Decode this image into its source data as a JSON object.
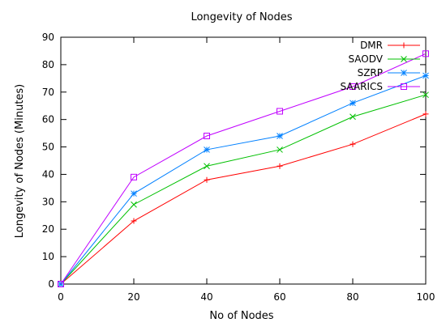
{
  "chart_data": {
    "type": "line",
    "title": "Longevity of Nodes",
    "xlabel": "No of Nodes",
    "ylabel": "Longevity of Nodes (Minutes)",
    "x": [
      0,
      20,
      40,
      60,
      80,
      100
    ],
    "xlim": [
      0,
      100
    ],
    "ylim": [
      0,
      90
    ],
    "xticks": [
      0,
      20,
      40,
      60,
      80,
      100
    ],
    "yticks": [
      0,
      10,
      20,
      30,
      40,
      50,
      60,
      70,
      80,
      90
    ],
    "grid": false,
    "legend_position": "top-right",
    "series": [
      {
        "name": "DMR",
        "marker": "plus",
        "color": "#ff0000",
        "values": [
          0,
          23,
          38,
          43,
          51,
          62
        ]
      },
      {
        "name": "SAODV",
        "marker": "cross",
        "color": "#00c000",
        "values": [
          0,
          29,
          43,
          49,
          61,
          69
        ]
      },
      {
        "name": "SZRP",
        "marker": "star",
        "color": "#0080ff",
        "values": [
          0,
          33,
          49,
          54,
          66,
          76
        ]
      },
      {
        "name": "SAARICS",
        "marker": "square",
        "color": "#c000ff",
        "values": [
          0,
          39,
          54,
          63,
          72,
          84
        ]
      }
    ]
  }
}
